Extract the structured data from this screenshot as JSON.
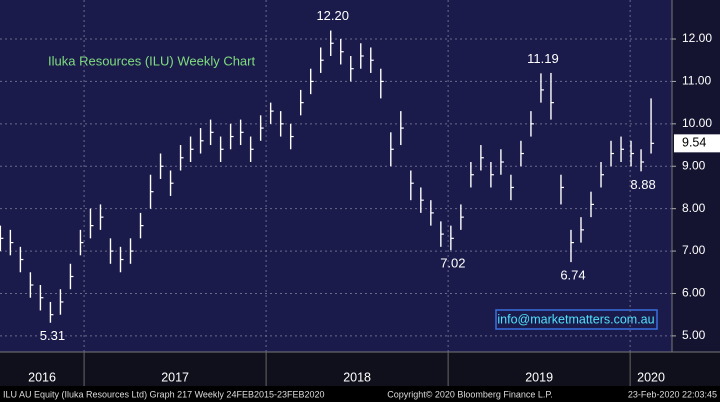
{
  "chart_data": {
    "type": "ohlc",
    "title": "Iluka Resources (ILU) Weekly Chart",
    "x": [
      2016.54,
      2016.595,
      2016.65,
      2016.705,
      2016.76,
      2016.815,
      2016.87,
      2016.925,
      2016.98,
      2017.035,
      2017.09,
      2017.145,
      2017.2,
      2017.255,
      2017.31,
      2017.365,
      2017.42,
      2017.475,
      2017.53,
      2017.585,
      2017.64,
      2017.695,
      2017.75,
      2017.805,
      2017.86,
      2017.915,
      2017.97,
      2018.025,
      2018.08,
      2018.135,
      2018.19,
      2018.245,
      2018.3,
      2018.355,
      2018.41,
      2018.465,
      2018.52,
      2018.575,
      2018.63,
      2018.685,
      2018.74,
      2018.795,
      2018.85,
      2018.905,
      2018.96,
      2019.015,
      2019.07,
      2019.125,
      2019.18,
      2019.235,
      2019.29,
      2019.345,
      2019.4,
      2019.455,
      2019.51,
      2019.565,
      2019.62,
      2019.675,
      2019.73,
      2019.785,
      2019.84,
      2019.895,
      2019.95,
      2020.005,
      2020.06,
      2020.115
    ],
    "high": [
      7.6,
      7.5,
      7.1,
      6.5,
      6.2,
      5.8,
      6.1,
      6.7,
      7.5,
      8.0,
      8.1,
      7.3,
      7.1,
      7.3,
      7.9,
      8.8,
      9.3,
      8.9,
      9.5,
      9.7,
      9.9,
      10.1,
      9.7,
      10.0,
      10.1,
      9.7,
      10.2,
      10.5,
      10.3,
      10.0,
      10.8,
      11.3,
      11.8,
      12.2,
      12.0,
      11.6,
      11.9,
      11.8,
      11.3,
      9.8,
      10.3,
      8.9,
      8.5,
      8.2,
      7.7,
      7.6,
      8.1,
      9.1,
      9.5,
      9.1,
      9.4,
      8.8,
      9.6,
      10.3,
      11.19,
      11.2,
      8.8,
      7.5,
      7.8,
      8.4,
      9.1,
      9.6,
      9.7,
      9.6,
      9.4,
      10.6
    ],
    "low": [
      7.0,
      6.9,
      6.5,
      5.9,
      5.6,
      5.31,
      5.5,
      6.1,
      6.9,
      7.3,
      7.5,
      6.7,
      6.5,
      6.7,
      7.3,
      8.0,
      8.7,
      8.3,
      8.9,
      9.1,
      9.3,
      9.5,
      9.1,
      9.4,
      9.5,
      9.1,
      9.6,
      10.0,
      9.7,
      9.4,
      10.2,
      10.7,
      11.2,
      11.6,
      11.4,
      11.0,
      11.3,
      11.2,
      10.6,
      9.0,
      9.5,
      8.2,
      7.9,
      7.6,
      7.1,
      7.02,
      7.5,
      8.5,
      8.9,
      8.5,
      8.8,
      8.2,
      9.0,
      9.7,
      10.5,
      10.1,
      8.1,
      6.74,
      7.2,
      7.8,
      8.5,
      9.0,
      9.1,
      9.0,
      8.88,
      9.3
    ],
    "close": [
      7.3,
      7.2,
      6.8,
      6.2,
      5.9,
      5.5,
      5.8,
      6.4,
      7.2,
      7.6,
      7.8,
      7.0,
      6.8,
      7.0,
      7.6,
      8.4,
      9.0,
      8.6,
      9.2,
      9.4,
      9.6,
      9.8,
      9.4,
      9.7,
      9.8,
      9.4,
      9.9,
      10.3,
      10.0,
      9.7,
      10.5,
      11.0,
      11.5,
      11.9,
      11.7,
      11.3,
      11.6,
      11.5,
      11.0,
      9.4,
      9.9,
      8.6,
      8.2,
      7.9,
      7.4,
      7.3,
      7.8,
      8.8,
      9.2,
      8.8,
      9.1,
      8.5,
      9.3,
      10.0,
      10.8,
      10.5,
      8.5,
      7.2,
      7.5,
      8.1,
      8.8,
      9.3,
      9.4,
      9.3,
      9.1,
      9.54
    ],
    "color": "#ffffff",
    "xlim": [
      2016.538,
      2020.23
    ],
    "xticks": [
      {
        "value": 2016,
        "label": "2016"
      },
      {
        "value": 2017,
        "label": "2017"
      },
      {
        "value": 2018,
        "label": "2018"
      },
      {
        "value": 2019,
        "label": "2019"
      },
      {
        "value": 2020,
        "label": "2020"
      }
    ],
    "ylim": [
      4.62,
      12.92
    ],
    "yticks": [
      {
        "value": 5,
        "label": "5.00"
      },
      {
        "value": 6,
        "label": "6.00"
      },
      {
        "value": 7,
        "label": "7.00"
      },
      {
        "value": 8,
        "label": "8.00"
      },
      {
        "value": 9,
        "label": "9.00"
      },
      {
        "value": 10,
        "label": "10.00"
      },
      {
        "value": 11,
        "label": "11.00"
      },
      {
        "value": 12,
        "label": "12.00"
      }
    ],
    "grid": true,
    "annotations": [
      {
        "text": "12.20",
        "x": 2018.355,
        "y": 12.2
      },
      {
        "text": "11.19",
        "x": 2019.51,
        "y": 11.19
      },
      {
        "text": "7.02",
        "x": 2019.015,
        "y": 7.02
      },
      {
        "text": "6.74",
        "x": 2019.675,
        "y": 6.74
      },
      {
        "text": "5.31",
        "x": 2016.815,
        "y": 5.31
      },
      {
        "text": "8.88",
        "x": 2020.06,
        "y": 8.88
      }
    ],
    "watermark": "info@marketmatters.com.au"
  },
  "footer": {
    "left": "ILU AU Equity (Iluka Resources Ltd) Graph 217  Weekly 24FEB2015-23FEB2020",
    "center": "Copyright© 2020 Bloomberg Finance L.P.",
    "right": "23-Feb-2020 22:03:45"
  }
}
